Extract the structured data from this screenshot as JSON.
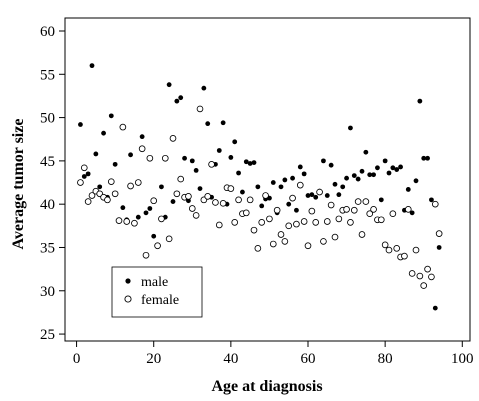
{
  "chart_data": {
    "type": "scatter",
    "xlabel": "Age at diagnosis",
    "ylabel": "Average tumor size",
    "xlim": [
      -3,
      102
    ],
    "ylim": [
      24.2,
      61.5
    ],
    "xticks": [
      0,
      20,
      40,
      60,
      80,
      100
    ],
    "yticks": [
      25,
      30,
      35,
      40,
      45,
      50,
      55,
      60
    ],
    "grid": false,
    "legend_position": "bottom-left",
    "series": [
      {
        "name": "male",
        "marker": "filled-circle",
        "color": "#000000",
        "points": [
          [
            1,
            49.2
          ],
          [
            2,
            43.2
          ],
          [
            3,
            43.5
          ],
          [
            4,
            56.0
          ],
          [
            5,
            45.8
          ],
          [
            6,
            42.0
          ],
          [
            7,
            48.2
          ],
          [
            8,
            40.8
          ],
          [
            9,
            50.2
          ],
          [
            10,
            44.6
          ],
          [
            12,
            39.6
          ],
          [
            13,
            38.2
          ],
          [
            14,
            45.7
          ],
          [
            15,
            37.7
          ],
          [
            16,
            38.5
          ],
          [
            17,
            47.8
          ],
          [
            18,
            39.0
          ],
          [
            19,
            39.5
          ],
          [
            20,
            36.3
          ],
          [
            22,
            42.0
          ],
          [
            23,
            38.5
          ],
          [
            24,
            53.8
          ],
          [
            25,
            40.3
          ],
          [
            26,
            51.9
          ],
          [
            27,
            52.3
          ],
          [
            28,
            45.3
          ],
          [
            29,
            40.4
          ],
          [
            30,
            45.0
          ],
          [
            31,
            43.9
          ],
          [
            32,
            41.8
          ],
          [
            33,
            53.4
          ],
          [
            34,
            49.3
          ],
          [
            35,
            40.8
          ],
          [
            36,
            44.6
          ],
          [
            37,
            46.2
          ],
          [
            38,
            49.4
          ],
          [
            39,
            40.0
          ],
          [
            40,
            45.4
          ],
          [
            41,
            47.2
          ],
          [
            42,
            43.6
          ],
          [
            43,
            41.4
          ],
          [
            44,
            44.9
          ],
          [
            45,
            44.7
          ],
          [
            46,
            44.8
          ],
          [
            47,
            42.0
          ],
          [
            48,
            39.8
          ],
          [
            49,
            40.6
          ],
          [
            50,
            40.7
          ],
          [
            51,
            42.5
          ],
          [
            52,
            39.0
          ],
          [
            53,
            42.0
          ],
          [
            54,
            42.8
          ],
          [
            55,
            40.0
          ],
          [
            56,
            43.0
          ],
          [
            57,
            39.3
          ],
          [
            58,
            44.3
          ],
          [
            59,
            43.5
          ],
          [
            60,
            41.0
          ],
          [
            61,
            41.1
          ],
          [
            62,
            40.8
          ],
          [
            63,
            41.5
          ],
          [
            64,
            45.0
          ],
          [
            65,
            41.0
          ],
          [
            66,
            44.5
          ],
          [
            67,
            42.3
          ],
          [
            68,
            41.1
          ],
          [
            69,
            42.0
          ],
          [
            70,
            43.0
          ],
          [
            71,
            48.8
          ],
          [
            72,
            43.3
          ],
          [
            73,
            42.9
          ],
          [
            74,
            43.8
          ],
          [
            75,
            46.0
          ],
          [
            76,
            43.4
          ],
          [
            77,
            43.4
          ],
          [
            78,
            44.2
          ],
          [
            79,
            40.5
          ],
          [
            80,
            45.0
          ],
          [
            81,
            43.6
          ],
          [
            82,
            44.2
          ],
          [
            83,
            44.0
          ],
          [
            84,
            44.3
          ],
          [
            85,
            39.3
          ],
          [
            86,
            41.7
          ],
          [
            87,
            39.0
          ],
          [
            88,
            42.7
          ],
          [
            89,
            51.9
          ],
          [
            90,
            45.3
          ],
          [
            91,
            45.3
          ],
          [
            92,
            40.5
          ],
          [
            93,
            28.0
          ],
          [
            94,
            35.0
          ]
        ]
      },
      {
        "name": "female",
        "marker": "open-circle",
        "color": "#000000",
        "points": [
          [
            1,
            42.5
          ],
          [
            2,
            44.2
          ],
          [
            3,
            40.3
          ],
          [
            4,
            41.0
          ],
          [
            5,
            41.5
          ],
          [
            6,
            41.2
          ],
          [
            7,
            40.8
          ],
          [
            8,
            40.5
          ],
          [
            9,
            42.6
          ],
          [
            10,
            41.2
          ],
          [
            11,
            38.1
          ],
          [
            12,
            48.9
          ],
          [
            13,
            38.0
          ],
          [
            14,
            42.1
          ],
          [
            15,
            37.8
          ],
          [
            16,
            42.5
          ],
          [
            17,
            46.4
          ],
          [
            18,
            34.1
          ],
          [
            19,
            45.3
          ],
          [
            20,
            40.4
          ],
          [
            21,
            35.2
          ],
          [
            22,
            38.3
          ],
          [
            23,
            45.3
          ],
          [
            24,
            36.0
          ],
          [
            25,
            47.6
          ],
          [
            26,
            41.2
          ],
          [
            27,
            42.9
          ],
          [
            28,
            40.8
          ],
          [
            29,
            40.9
          ],
          [
            30,
            39.5
          ],
          [
            31,
            38.7
          ],
          [
            32,
            51.0
          ],
          [
            33,
            40.5
          ],
          [
            34,
            40.9
          ],
          [
            35,
            44.6
          ],
          [
            36,
            40.2
          ],
          [
            37,
            37.6
          ],
          [
            38,
            40.1
          ],
          [
            39,
            41.9
          ],
          [
            40,
            41.8
          ],
          [
            41,
            37.9
          ],
          [
            42,
            40.5
          ],
          [
            43,
            38.9
          ],
          [
            44,
            39.0
          ],
          [
            45,
            40.5
          ],
          [
            46,
            37.0
          ],
          [
            47,
            34.9
          ],
          [
            48,
            37.9
          ],
          [
            49,
            41.0
          ],
          [
            50,
            38.3
          ],
          [
            51,
            35.4
          ],
          [
            52,
            39.3
          ],
          [
            53,
            36.5
          ],
          [
            54,
            35.7
          ],
          [
            55,
            37.5
          ],
          [
            56,
            40.7
          ],
          [
            57,
            37.7
          ],
          [
            58,
            42.2
          ],
          [
            59,
            38.0
          ],
          [
            60,
            35.2
          ],
          [
            61,
            39.2
          ],
          [
            62,
            37.9
          ],
          [
            63,
            41.4
          ],
          [
            64,
            35.7
          ],
          [
            65,
            38.0
          ],
          [
            66,
            39.9
          ],
          [
            67,
            36.2
          ],
          [
            68,
            38.3
          ],
          [
            69,
            39.3
          ],
          [
            70,
            39.4
          ],
          [
            71,
            37.9
          ],
          [
            72,
            39.3
          ],
          [
            73,
            40.3
          ],
          [
            74,
            36.5
          ],
          [
            75,
            40.3
          ],
          [
            76,
            38.9
          ],
          [
            77,
            39.4
          ],
          [
            78,
            38.2
          ],
          [
            79,
            38.2
          ],
          [
            80,
            35.3
          ],
          [
            81,
            34.7
          ],
          [
            82,
            38.9
          ],
          [
            83,
            34.9
          ],
          [
            84,
            33.9
          ],
          [
            85,
            34.0
          ],
          [
            86,
            39.4
          ],
          [
            87,
            32.0
          ],
          [
            88,
            34.7
          ],
          [
            89,
            31.7
          ],
          [
            90,
            30.6
          ],
          [
            91,
            32.5
          ],
          [
            92,
            31.6
          ],
          [
            93,
            40.0
          ],
          [
            94,
            36.6
          ]
        ]
      }
    ]
  }
}
